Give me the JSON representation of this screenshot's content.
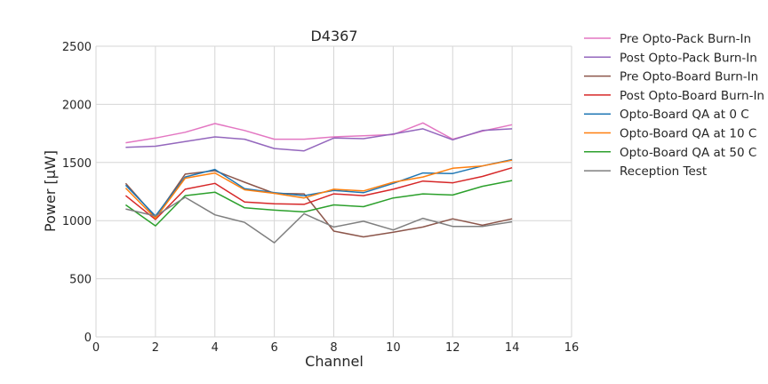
{
  "chart_data": {
    "type": "line",
    "title": "D4367",
    "xlabel": "Channel",
    "ylabel": "Power [μW]",
    "xlim": [
      0,
      16
    ],
    "ylim": [
      0,
      2500
    ],
    "xticks": [
      0,
      2,
      4,
      6,
      8,
      10,
      12,
      14,
      16
    ],
    "yticks": [
      0,
      500,
      1000,
      1500,
      2000,
      2500
    ],
    "grid": true,
    "legend_position": "outside-right",
    "x": [
      1,
      2,
      3,
      4,
      5,
      6,
      7,
      8,
      9,
      10,
      11,
      12,
      13,
      14
    ],
    "series": [
      {
        "name": "Pre Opto-Pack Burn-In",
        "color": "#e377c2",
        "values": [
          1670,
          1710,
          1760,
          1835,
          1775,
          1700,
          1700,
          1720,
          1730,
          1740,
          1840,
          1700,
          1770,
          1825
        ]
      },
      {
        "name": "Post Opto-Pack Burn-In",
        "color": "#9467bd",
        "values": [
          1630,
          1640,
          1680,
          1720,
          1700,
          1620,
          1600,
          1710,
          1705,
          1745,
          1790,
          1695,
          1775,
          1790
        ]
      },
      {
        "name": "Pre Opto-Board Burn-In",
        "color": "#8c564b",
        "values": [
          1320,
          1030,
          1400,
          1430,
          1330,
          1235,
          1230,
          910,
          860,
          900,
          945,
          1015,
          960,
          1015
        ]
      },
      {
        "name": "Post Opto-Board Burn-In",
        "color": "#d62728",
        "values": [
          1215,
          1010,
          1270,
          1320,
          1160,
          1145,
          1140,
          1230,
          1215,
          1270,
          1340,
          1325,
          1380,
          1455
        ]
      },
      {
        "name": "Opto-Board QA at 0 C",
        "color": "#1f77b4",
        "values": [
          1305,
          1040,
          1375,
          1440,
          1275,
          1240,
          1215,
          1260,
          1240,
          1320,
          1410,
          1405,
          1470,
          1525
        ]
      },
      {
        "name": "Opto-Board QA at 10 C",
        "color": "#ff7f0e",
        "values": [
          1280,
          1020,
          1365,
          1410,
          1265,
          1235,
          1195,
          1270,
          1255,
          1330,
          1375,
          1450,
          1470,
          1520
        ]
      },
      {
        "name": "Opto-Board QA at 50 C",
        "color": "#2ca02c",
        "values": [
          1135,
          955,
          1215,
          1245,
          1110,
          1090,
          1075,
          1135,
          1120,
          1195,
          1230,
          1220,
          1295,
          1345
        ]
      },
      {
        "name": "Reception Test",
        "color": "#7f7f7f",
        "values": [
          1100,
          1040,
          1200,
          1050,
          985,
          810,
          1060,
          945,
          995,
          920,
          1020,
          950,
          950,
          990
        ]
      }
    ]
  }
}
